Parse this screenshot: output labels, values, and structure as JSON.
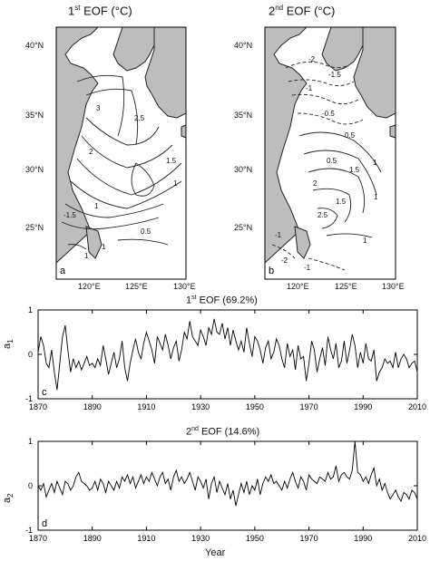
{
  "figure": {
    "map_a": {
      "title_prefix": "1",
      "title_sup": "st",
      "title_suffix": " EOF (°C)",
      "letter": "a",
      "contour_labels": [
        "3",
        "2.5",
        "2",
        "1.5",
        "1",
        "1",
        "-1.5",
        "0.5",
        "1",
        "1"
      ]
    },
    "map_b": {
      "title_prefix": "2",
      "title_sup": "nd",
      "title_suffix": " EOF (°C)",
      "letter": "b",
      "contour_labels": [
        "-2",
        "-1.5",
        "-1",
        "-0.5",
        "0.5",
        "1",
        "1.5",
        "2",
        "2.5",
        "1",
        "-1",
        "-2",
        "-1",
        "0.5",
        "1.5",
        "1"
      ]
    },
    "map_ticks": {
      "lat": [
        "40°N",
        "35°N",
        "30°N",
        "25°N"
      ],
      "lon": [
        "120°E",
        "125°E",
        "130°E"
      ]
    },
    "ts_a": {
      "title_prefix": "1",
      "title_sup": "st",
      "title_suffix": " EOF (69.2%)",
      "ylabel_main": "a",
      "ylabel_sub": "1",
      "letter": "c",
      "yticks": [
        "1",
        "0",
        "-1"
      ],
      "xticks": [
        "1870",
        "1890",
        "1910",
        "1930",
        "1950",
        "1970",
        "1990",
        "2010"
      ]
    },
    "ts_b": {
      "title_prefix": "2",
      "title_sup": "nd",
      "title_suffix": " EOF (14.6%)",
      "ylabel_main": "a",
      "ylabel_sub": "2",
      "letter": "d",
      "yticks": [
        "1",
        "0",
        "-1"
      ],
      "xticks": [
        "1870",
        "1890",
        "1910",
        "1930",
        "1950",
        "1970",
        "1990",
        "2010"
      ],
      "xlabel": "Year"
    }
  },
  "chart_data": [
    {
      "type": "line",
      "ylim": [
        -1,
        1
      ],
      "xlim": [
        1870,
        2010
      ],
      "series": [
        {
          "x": [
            1870,
            1871,
            1872,
            1873,
            1874,
            1875,
            1876,
            1877,
            1878,
            1879,
            1880,
            1881,
            1882,
            1883,
            1884,
            1885,
            1886,
            1887,
            1888,
            1889,
            1890,
            1891,
            1892,
            1893,
            1894,
            1895,
            1896,
            1897,
            1898,
            1899,
            1900,
            1901,
            1902,
            1903,
            1904,
            1905,
            1906,
            1907,
            1908,
            1909,
            1910,
            1911,
            1912,
            1913,
            1914,
            1915,
            1916,
            1917,
            1918,
            1919,
            1920,
            1921,
            1922,
            1923,
            1924,
            1925,
            1926,
            1927,
            1928,
            1929,
            1930,
            1931,
            1932,
            1933,
            1934,
            1935,
            1936,
            1937,
            1938,
            1939,
            1940,
            1941,
            1942,
            1943,
            1944,
            1945,
            1946,
            1947,
            1948,
            1949,
            1950,
            1951,
            1952,
            1953,
            1954,
            1955,
            1956,
            1957,
            1958,
            1959,
            1960,
            1961,
            1962,
            1963,
            1964,
            1965,
            1966,
            1967,
            1968,
            1969,
            1970,
            1971,
            1972,
            1973,
            1974,
            1975,
            1976,
            1977,
            1978,
            1979,
            1980,
            1981,
            1982,
            1983,
            1984,
            1985,
            1986,
            1987,
            1988,
            1989,
            1990,
            1991,
            1992,
            1993,
            1994,
            1995,
            1996,
            1997,
            1998,
            1999,
            2000,
            2001,
            2002,
            2003,
            2004,
            2005,
            2006,
            2007,
            2008,
            2009,
            2010
          ],
          "values": [
            0.05,
            0.4,
            0.2,
            -0.2,
            -0.3,
            0.1,
            -0.4,
            -0.8,
            -0.2,
            0.4,
            0.65,
            0.1,
            -0.4,
            -0.1,
            -0.3,
            -0.15,
            -0.35,
            -0.2,
            -0.05,
            -0.25,
            -0.2,
            -0.3,
            -0.1,
            -0.25,
            0.2,
            -0.1,
            -0.45,
            -0.2,
            0.05,
            -0.3,
            -0.1,
            0.3,
            -0.3,
            -0.6,
            -0.2,
            0.1,
            0.35,
            0.05,
            -0.1,
            0.25,
            0.5,
            0.3,
            0.1,
            -0.2,
            0.4,
            0.25,
            0.1,
            0.45,
            0.2,
            -0.1,
            0.15,
            0.3,
            -0.15,
            0.1,
            0.5,
            0.35,
            0.75,
            0.4,
            0.3,
            0.2,
            0.55,
            0.4,
            0.2,
            0.6,
            0.45,
            0.8,
            0.5,
            0.45,
            0.7,
            0.35,
            0.6,
            0.2,
            0.55,
            0.3,
            0.1,
            0.3,
            0.05,
            0.6,
            0.25,
            -0.05,
            0.4,
            0.3,
            0.1,
            -0.2,
            0.15,
            0.3,
            -0.1,
            0.05,
            0.35,
            0.2,
            -0.1,
            -0.3,
            0.25,
            -0.05,
            0.1,
            -0.35,
            0.2,
            -0.1,
            -0.05,
            -0.6,
            -0.2,
            0.3,
            0.1,
            -0.4,
            -0.1,
            0.15,
            -0.25,
            0.4,
            0.1,
            -0.1,
            0.25,
            -0.3,
            -0.15,
            0.3,
            -0.2,
            0.1,
            0.45,
            0.2,
            -0.3,
            0.05,
            -0.2,
            0.25,
            -0.1,
            -0.15,
            0.1,
            -0.6,
            -0.4,
            -0.3,
            -0.1,
            -0.2,
            -0.15,
            -0.3,
            0.05,
            -0.3,
            -0.1,
            0.0,
            -0.1,
            -0.3,
            -0.2,
            -0.15,
            -0.4
          ]
        }
      ]
    },
    {
      "type": "line",
      "ylim": [
        -1,
        1
      ],
      "xlim": [
        1870,
        2010
      ],
      "series": [
        {
          "x": [
            1870,
            1871,
            1872,
            1873,
            1874,
            1875,
            1876,
            1877,
            1878,
            1879,
            1880,
            1881,
            1882,
            1883,
            1884,
            1885,
            1886,
            1887,
            1888,
            1889,
            1890,
            1891,
            1892,
            1893,
            1894,
            1895,
            1896,
            1897,
            1898,
            1899,
            1900,
            1901,
            1902,
            1903,
            1904,
            1905,
            1906,
            1907,
            1908,
            1909,
            1910,
            1911,
            1912,
            1913,
            1914,
            1915,
            1916,
            1917,
            1918,
            1919,
            1920,
            1921,
            1922,
            1923,
            1924,
            1925,
            1926,
            1927,
            1928,
            1929,
            1930,
            1931,
            1932,
            1933,
            1934,
            1935,
            1936,
            1937,
            1938,
            1939,
            1940,
            1941,
            1942,
            1943,
            1944,
            1945,
            1946,
            1947,
            1948,
            1949,
            1950,
            1951,
            1952,
            1953,
            1954,
            1955,
            1956,
            1957,
            1958,
            1959,
            1960,
            1961,
            1962,
            1963,
            1964,
            1965,
            1966,
            1967,
            1968,
            1969,
            1970,
            1971,
            1972,
            1973,
            1974,
            1975,
            1976,
            1977,
            1978,
            1979,
            1980,
            1981,
            1982,
            1983,
            1984,
            1985,
            1986,
            1987,
            1988,
            1989,
            1990,
            1991,
            1992,
            1993,
            1994,
            1995,
            1996,
            1997,
            1998,
            1999,
            2000,
            2001,
            2002,
            2003,
            2004,
            2005,
            2006,
            2007,
            2008,
            2009,
            2010
          ],
          "values": [
            0.0,
            -0.1,
            0.05,
            -0.25,
            -0.1,
            0.05,
            -0.15,
            0.1,
            -0.05,
            -0.2,
            0.1,
            0.05,
            -0.1,
            0.0,
            0.2,
            0.3,
            0.1,
            0.05,
            0.0,
            -0.1,
            -0.05,
            0.1,
            -0.1,
            0.15,
            0.05,
            -0.15,
            0.1,
            0.0,
            -0.1,
            0.1,
            -0.05,
            0.2,
            0.1,
            0.25,
            0.05,
            0.2,
            -0.05,
            0.1,
            0.25,
            0.05,
            0.2,
            0.1,
            0.3,
            0.15,
            0.0,
            0.2,
            0.3,
            0.05,
            0.15,
            -0.1,
            0.2,
            0.35,
            0.1,
            0.2,
            0.05,
            0.15,
            0.3,
            0.1,
            -0.1,
            0.2,
            0.1,
            -0.05,
            0.15,
            -0.3,
            0.05,
            0.2,
            -0.15,
            0.1,
            -0.05,
            -0.2,
            0.05,
            -0.3,
            -0.1,
            -0.45,
            -0.2,
            0.05,
            -0.15,
            0.1,
            -0.2,
            0.0,
            -0.1,
            0.15,
            -0.2,
            0.05,
            0.2,
            0.1,
            0.25,
            0.05,
            0.1,
            0.0,
            -0.1,
            0.1,
            -0.05,
            0.15,
            0.3,
            0.1,
            -0.05,
            0.2,
            0.1,
            -0.1,
            0.25,
            0.15,
            0.1,
            0.05,
            0.2,
            0.15,
            0.1,
            0.3,
            0.15,
            0.2,
            0.45,
            0.1,
            0.25,
            0.3,
            0.2,
            0.15,
            0.35,
            1.0,
            0.3,
            0.25,
            0.1,
            0.2,
            0.05,
            0.25,
            0.4,
            0.0,
            0.15,
            -0.1,
            0.05,
            -0.15,
            -0.3,
            -0.2,
            -0.1,
            -0.25,
            -0.35,
            -0.15,
            -0.2,
            -0.3,
            -0.1,
            -0.15,
            -0.3
          ]
        }
      ]
    }
  ]
}
